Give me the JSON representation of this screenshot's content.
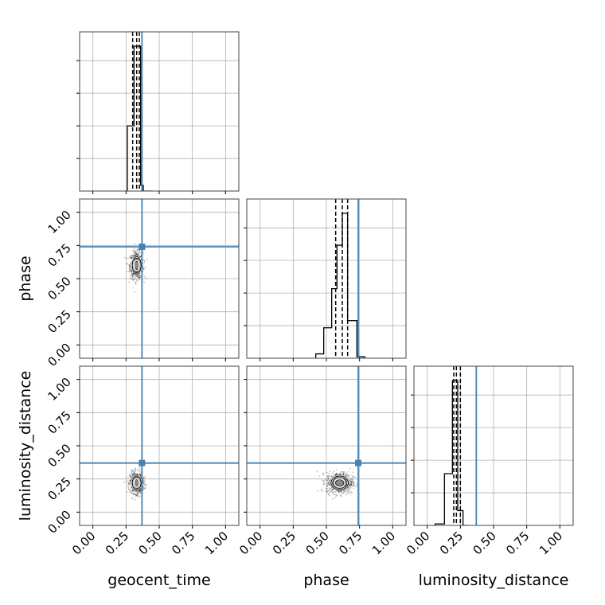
{
  "chart_data": {
    "type": "corner",
    "parameters": [
      "geocent_time",
      "phase",
      "luminosity_distance"
    ],
    "axis_range": [
      -0.1,
      1.1
    ],
    "ticks": [
      0.0,
      0.25,
      0.5,
      0.75,
      1.0
    ],
    "tick_labels": [
      "0.00",
      "0.25",
      "0.50",
      "0.75",
      "1.00"
    ],
    "truths": [
      0.37,
      0.74,
      0.37
    ],
    "truth_color": "#4682b4",
    "grid": true,
    "histograms": [
      {
        "parameter": "geocent_time",
        "bin_edges": [
          0.26,
          0.31,
          0.36,
          0.38,
          0.44
        ],
        "counts": [
          0.45,
          1.0,
          0.04,
          0.0
        ],
        "quantiles": [
          0.3,
          0.33,
          0.35
        ]
      },
      {
        "parameter": "phase",
        "bin_edges": [
          0.42,
          0.48,
          0.54,
          0.58,
          0.62,
          0.66,
          0.73,
          0.79
        ],
        "counts": [
          0.03,
          0.21,
          0.48,
          0.78,
          1.0,
          0.26,
          0.01
        ],
        "quantiles": [
          0.57,
          0.62,
          0.66
        ]
      },
      {
        "parameter": "luminosity_distance",
        "bin_edges": [
          0.06,
          0.13,
          0.19,
          0.23,
          0.27,
          0.31
        ],
        "counts": [
          0.01,
          0.35,
          0.98,
          0.1,
          0.0
        ],
        "quantiles": [
          0.2,
          0.22,
          0.25
        ]
      }
    ],
    "scatter_panels": [
      {
        "x": "geocent_time",
        "y": "phase",
        "center": [
          0.33,
          0.6
        ],
        "spread": [
          0.025,
          0.05
        ]
      },
      {
        "x": "geocent_time",
        "y": "luminosity_distance",
        "center": [
          0.33,
          0.22
        ],
        "spread": [
          0.025,
          0.04
        ]
      },
      {
        "x": "phase",
        "y": "luminosity_distance",
        "center": [
          0.6,
          0.22
        ],
        "spread": [
          0.05,
          0.04
        ]
      }
    ]
  }
}
